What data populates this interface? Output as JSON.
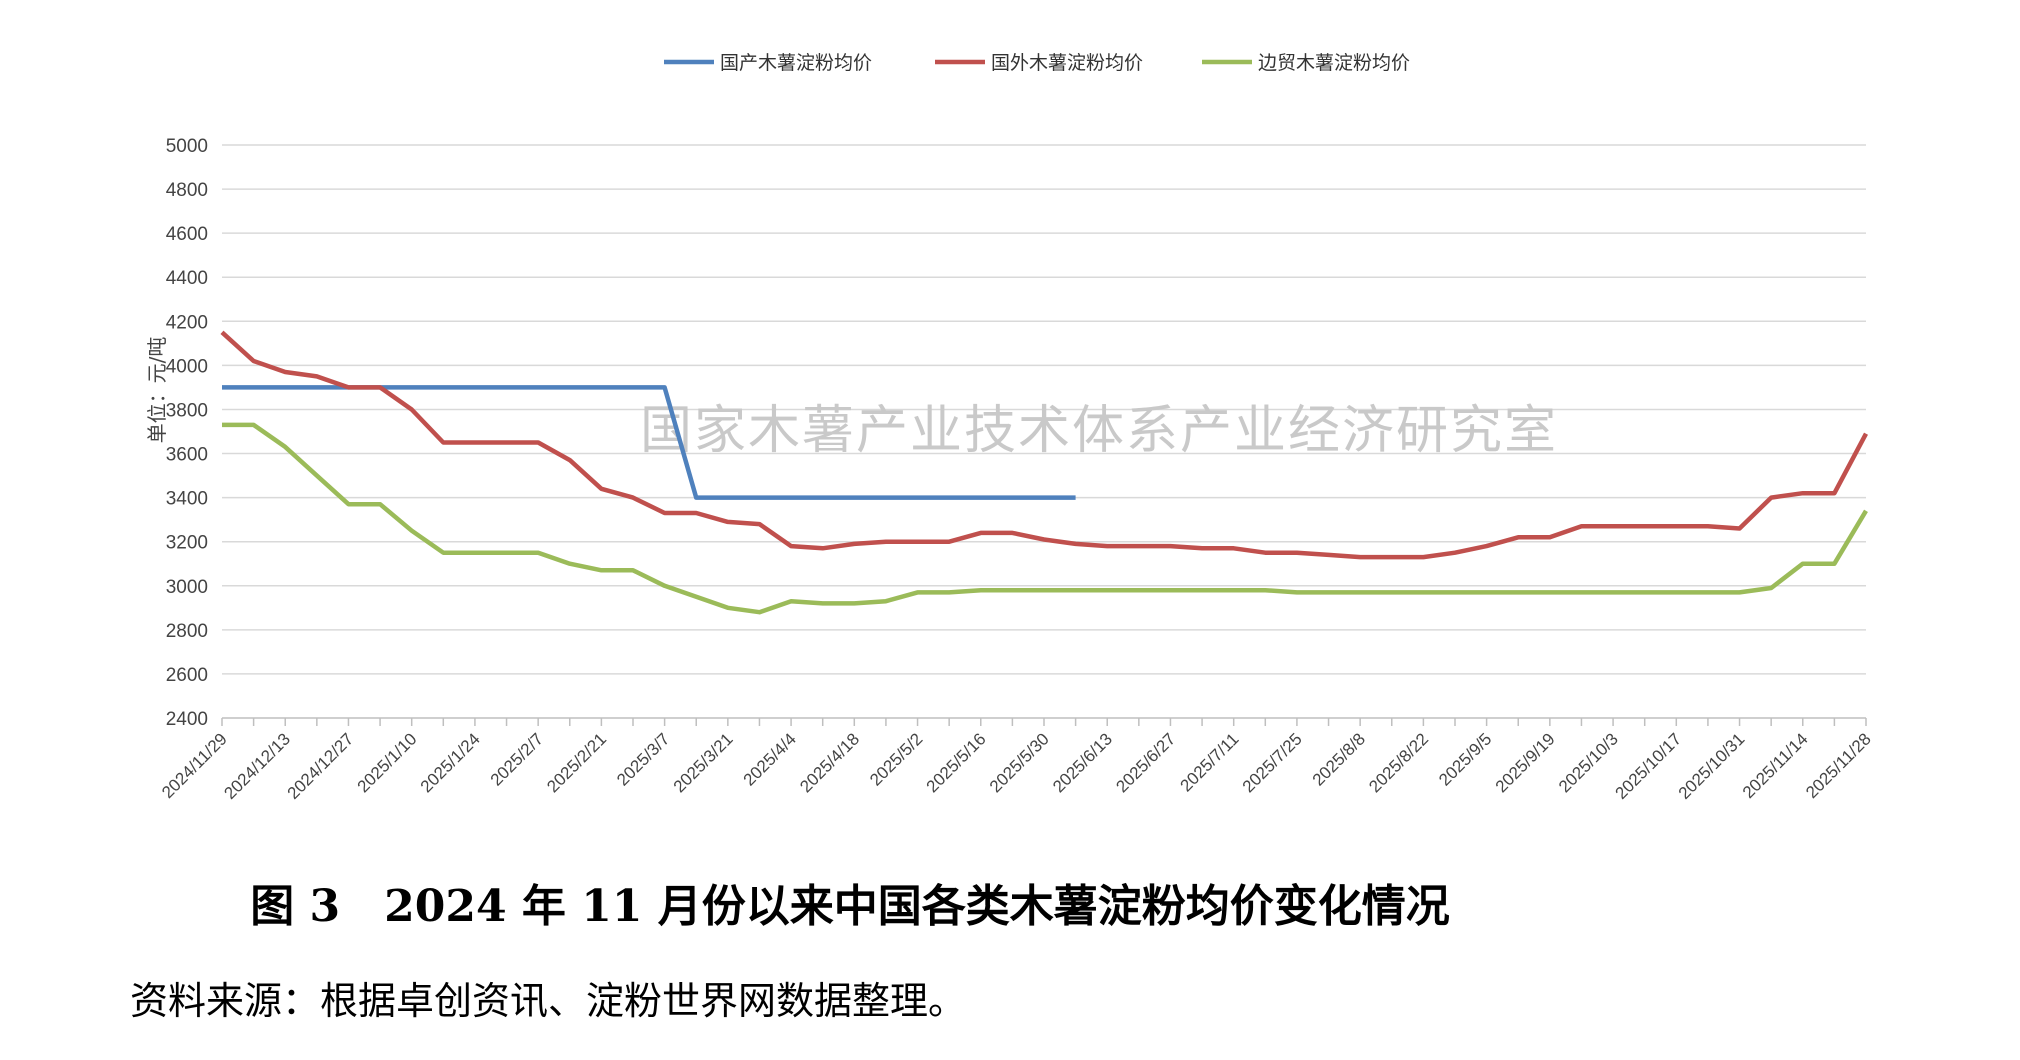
{
  "chart_data": {
    "type": "line",
    "ylabel": "单位：元/吨",
    "ylim": [
      2400,
      5000
    ],
    "yticks": [
      2400,
      2600,
      2800,
      3000,
      3200,
      3400,
      3600,
      3800,
      4000,
      4200,
      4400,
      4600,
      4800,
      5000
    ],
    "grid": true,
    "legend_position": "top",
    "watermark": "国家木薯产业技术体系产业经济研究室",
    "x": [
      "2024/11/29",
      "2024/12/6",
      "2024/12/13",
      "2024/12/20",
      "2024/12/27",
      "2025/1/3",
      "2025/1/10",
      "2025/1/17",
      "2025/1/24",
      "2025/1/31",
      "2025/2/7",
      "2025/2/14",
      "2025/2/21",
      "2025/2/28",
      "2025/3/7",
      "2025/3/14",
      "2025/3/21",
      "2025/3/28",
      "2025/4/4",
      "2025/4/11",
      "2025/4/18",
      "2025/4/25",
      "2025/5/2",
      "2025/5/9",
      "2025/5/16",
      "2025/5/23",
      "2025/5/30",
      "2025/6/6",
      "2025/6/13",
      "2025/6/20",
      "2025/6/27",
      "2025/7/4",
      "2025/7/11",
      "2025/7/18",
      "2025/7/25",
      "2025/8/1",
      "2025/8/8",
      "2025/8/15",
      "2025/8/22",
      "2025/8/29",
      "2025/9/5",
      "2025/9/12",
      "2025/9/19",
      "2025/9/26",
      "2025/10/3",
      "2025/10/10",
      "2025/10/17",
      "2025/10/24",
      "2025/10/31",
      "2025/11/7",
      "2025/11/14",
      "2025/11/21",
      "2025/11/28"
    ],
    "xtick_labels": [
      "2024/11/29",
      "2024/12/13",
      "2024/12/27",
      "2025/1/10",
      "2025/1/24",
      "2025/2/7",
      "2025/2/21",
      "2025/3/7",
      "2025/3/21",
      "2025/4/4",
      "2025/4/18",
      "2025/5/2",
      "2025/5/16",
      "2025/5/30",
      "2025/6/13",
      "2025/6/27",
      "2025/7/11",
      "2025/7/25",
      "2025/8/8",
      "2025/8/22",
      "2025/9/5",
      "2025/9/19",
      "2025/10/3",
      "2025/10/17",
      "2025/10/31",
      "2025/11/14",
      "2025/11/28"
    ],
    "series": [
      {
        "name": "国产木薯淀粉均价",
        "color": "#4f81bd",
        "values": [
          3900,
          3900,
          3900,
          3900,
          3900,
          3900,
          3900,
          3900,
          3900,
          3900,
          3900,
          3900,
          3900,
          3900,
          3900,
          3400,
          3400,
          3400,
          3400,
          3400,
          3400,
          3400,
          3400,
          3400,
          3400,
          3400,
          3400,
          3400,
          null,
          null,
          null,
          null,
          null,
          null,
          null,
          null,
          null,
          null,
          null,
          null,
          null,
          null,
          null,
          null,
          null,
          null,
          null,
          null,
          null,
          null,
          null,
          null,
          null
        ]
      },
      {
        "name": "国外木薯淀粉均价",
        "color": "#c0504d",
        "values": [
          4150,
          4020,
          3970,
          3950,
          3900,
          3900,
          3800,
          3650,
          3650,
          3650,
          3650,
          3570,
          3440,
          3400,
          3330,
          3330,
          3290,
          3280,
          3180,
          3170,
          3190,
          3200,
          3200,
          3200,
          3240,
          3240,
          3210,
          3190,
          3180,
          3180,
          3180,
          3170,
          3170,
          3150,
          3150,
          3140,
          3130,
          3130,
          3130,
          3150,
          3180,
          3220,
          3220,
          3270,
          3270,
          3270,
          3270,
          3270,
          3260,
          3400,
          3420,
          3420,
          3690
        ]
      },
      {
        "name": "边贸木薯淀粉均价",
        "color": "#9bbb59",
        "values": [
          3730,
          3730,
          3630,
          3500,
          3370,
          3370,
          3250,
          3150,
          3150,
          3150,
          3150,
          3100,
          3070,
          3070,
          3000,
          2950,
          2900,
          2880,
          2930,
          2920,
          2920,
          2930,
          2970,
          2970,
          2980,
          2980,
          2980,
          2980,
          2980,
          2980,
          2980,
          2980,
          2980,
          2980,
          2970,
          2970,
          2970,
          2970,
          2970,
          2970,
          2970,
          2970,
          2970,
          2970,
          2970,
          2970,
          2970,
          2970,
          2970,
          2990,
          3100,
          3100,
          3340
        ]
      }
    ]
  },
  "caption": "图 3　2024 年 11 月份以来中国各类木薯淀粉均价变化情况",
  "source": "资料来源：根据卓创资讯、淀粉世界网数据整理。"
}
